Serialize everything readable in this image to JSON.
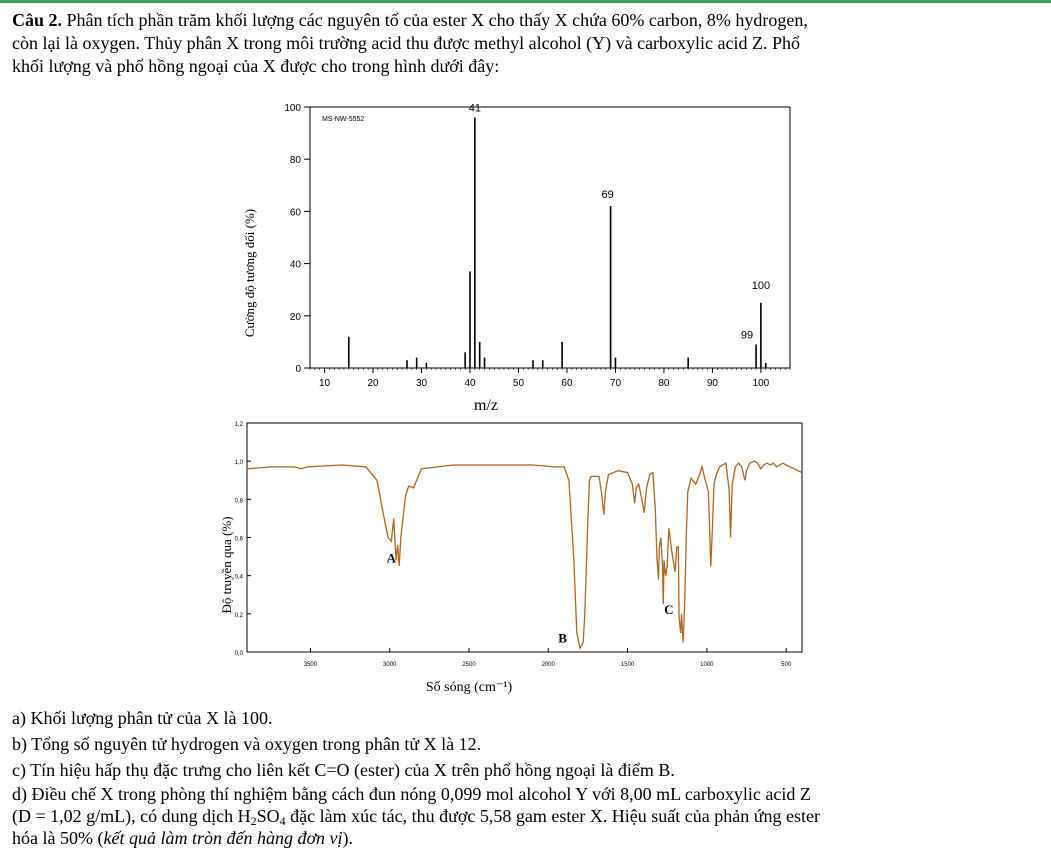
{
  "question": {
    "label": "Câu 2.",
    "line1": "Phân tích phần trăm khối lượng các nguyên tố của ester X cho thấy X chứa 60% carbon, 8% hydrogen,",
    "line2": "còn lại là oxygen. Thủy phân X trong môi trường acid thu được methyl alcohol (Y) và carboxylic acid Z. Phổ",
    "line3": "khối lượng và phổ hồng ngoại của X được cho trong hình dưới đây:"
  },
  "chart_data": [
    {
      "type": "bar",
      "title": "MS-NW-5552",
      "xlabel": "m/z",
      "ylabel": "Cường độ tương đối (%)",
      "xlim": [
        7,
        106
      ],
      "ylim": [
        0,
        100
      ],
      "x_ticks": [
        10,
        20,
        30,
        40,
        50,
        60,
        70,
        80,
        90,
        100
      ],
      "y_ticks": [
        0,
        20,
        40,
        60,
        80,
        100
      ],
      "peaks": [
        {
          "mz": 15,
          "intensity": 12
        },
        {
          "mz": 27,
          "intensity": 3
        },
        {
          "mz": 29,
          "intensity": 4
        },
        {
          "mz": 31,
          "intensity": 2
        },
        {
          "mz": 39,
          "intensity": 6
        },
        {
          "mz": 40,
          "intensity": 37
        },
        {
          "mz": 41,
          "intensity": 96
        },
        {
          "mz": 42,
          "intensity": 10
        },
        {
          "mz": 43,
          "intensity": 4
        },
        {
          "mz": 53,
          "intensity": 3
        },
        {
          "mz": 55,
          "intensity": 3
        },
        {
          "mz": 59,
          "intensity": 10
        },
        {
          "mz": 69,
          "intensity": 62
        },
        {
          "mz": 70,
          "intensity": 4
        },
        {
          "mz": 85,
          "intensity": 4
        },
        {
          "mz": 99,
          "intensity": 9
        },
        {
          "mz": 100,
          "intensity": 25
        },
        {
          "mz": 101,
          "intensity": 2
        }
      ],
      "labels": [
        {
          "mz": 41,
          "text": "41"
        },
        {
          "mz": 69,
          "text": "69"
        },
        {
          "mz": 100,
          "text": "100"
        },
        {
          "mz": 99,
          "text": "99"
        }
      ],
      "grid": false
    },
    {
      "type": "line",
      "xlabel": "Số sóng (cm⁻¹)",
      "ylabel": "Độ truyền qua (%)",
      "xlim": [
        3900,
        400
      ],
      "ylim": [
        0,
        1.2
      ],
      "x_ticks": [
        "3500",
        "3000",
        "2500",
        "2000",
        "1500",
        "1000",
        "500"
      ],
      "y_ticks": [
        "0,0",
        "0,2",
        "0,4",
        "0,6",
        "0,8",
        "1,0",
        "1,2"
      ],
      "line_color": "#b5651d",
      "points": [
        [
          3900,
          0.96
        ],
        [
          3750,
          0.97
        ],
        [
          3600,
          0.97
        ],
        [
          3560,
          0.96
        ],
        [
          3520,
          0.97
        ],
        [
          3300,
          0.98
        ],
        [
          3150,
          0.97
        ],
        [
          3080,
          0.9
        ],
        [
          3040,
          0.72
        ],
        [
          3010,
          0.6
        ],
        [
          2990,
          0.58
        ],
        [
          2975,
          0.7
        ],
        [
          2960,
          0.48
        ],
        [
          2950,
          0.56
        ],
        [
          2940,
          0.45
        ],
        [
          2930,
          0.6
        ],
        [
          2900,
          0.82
        ],
        [
          2880,
          0.87
        ],
        [
          2850,
          0.86
        ],
        [
          2820,
          0.92
        ],
        [
          2800,
          0.96
        ],
        [
          2600,
          0.98
        ],
        [
          2300,
          0.98
        ],
        [
          2100,
          0.98
        ],
        [
          1960,
          0.97
        ],
        [
          1900,
          0.97
        ],
        [
          1870,
          0.9
        ],
        [
          1840,
          0.5
        ],
        [
          1820,
          0.1
        ],
        [
          1800,
          0.02
        ],
        [
          1780,
          0.05
        ],
        [
          1770,
          0.2
        ],
        [
          1750,
          0.7
        ],
        [
          1740,
          0.9
        ],
        [
          1730,
          0.92
        ],
        [
          1700,
          0.92
        ],
        [
          1680,
          0.92
        ],
        [
          1665,
          0.84
        ],
        [
          1650,
          0.72
        ],
        [
          1640,
          0.84
        ],
        [
          1620,
          0.93
        ],
        [
          1560,
          0.95
        ],
        [
          1500,
          0.94
        ],
        [
          1470,
          0.88
        ],
        [
          1455,
          0.78
        ],
        [
          1445,
          0.86
        ],
        [
          1430,
          0.88
        ],
        [
          1410,
          0.8
        ],
        [
          1395,
          0.73
        ],
        [
          1380,
          0.86
        ],
        [
          1360,
          0.93
        ],
        [
          1340,
          0.94
        ],
        [
          1325,
          0.75
        ],
        [
          1315,
          0.5
        ],
        [
          1305,
          0.38
        ],
        [
          1300,
          0.55
        ],
        [
          1290,
          0.6
        ],
        [
          1280,
          0.45
        ],
        [
          1275,
          0.25
        ],
        [
          1270,
          0.48
        ],
        [
          1260,
          0.4
        ],
        [
          1250,
          0.45
        ],
        [
          1240,
          0.65
        ],
        [
          1220,
          0.52
        ],
        [
          1200,
          0.42
        ],
        [
          1190,
          0.55
        ],
        [
          1180,
          0.55
        ],
        [
          1175,
          0.18
        ],
        [
          1165,
          0.1
        ],
        [
          1160,
          0.2
        ],
        [
          1150,
          0.05
        ],
        [
          1140,
          0.25
        ],
        [
          1130,
          0.6
        ],
        [
          1120,
          0.84
        ],
        [
          1100,
          0.91
        ],
        [
          1070,
          0.88
        ],
        [
          1050,
          0.92
        ],
        [
          1030,
          0.97
        ],
        [
          1010,
          0.9
        ],
        [
          990,
          0.84
        ],
        [
          975,
          0.45
        ],
        [
          965,
          0.65
        ],
        [
          955,
          0.88
        ],
        [
          940,
          0.93
        ],
        [
          920,
          0.97
        ],
        [
          880,
          0.99
        ],
        [
          860,
          0.85
        ],
        [
          850,
          0.6
        ],
        [
          840,
          0.88
        ],
        [
          820,
          0.97
        ],
        [
          800,
          0.99
        ],
        [
          780,
          0.97
        ],
        [
          760,
          0.9
        ],
        [
          750,
          0.95
        ],
        [
          730,
          0.99
        ],
        [
          700,
          1.0
        ],
        [
          680,
          0.99
        ],
        [
          660,
          0.96
        ],
        [
          640,
          0.98
        ],
        [
          620,
          0.99
        ],
        [
          600,
          0.98
        ],
        [
          580,
          0.99
        ],
        [
          560,
          0.97
        ],
        [
          540,
          0.98
        ],
        [
          520,
          0.99
        ],
        [
          500,
          0.98
        ],
        [
          450,
          0.96
        ],
        [
          400,
          0.94
        ]
      ],
      "annotations": [
        {
          "text": "A",
          "x": 2990,
          "y": 0.47
        },
        {
          "text": "B",
          "x": 1910,
          "y": 0.05
        },
        {
          "text": "C",
          "x": 1240,
          "y": 0.2
        }
      ]
    }
  ],
  "options": {
    "a": "a) Khối lượng phân tử của X là 100.",
    "b": "b) Tổng số nguyên tử hydrogen và oxygen trong phân tử X là 12.",
    "c": "c) Tín hiệu hấp thụ đặc trưng cho liên kết C=O (ester) của X trên phổ hồng ngoại là điểm B.",
    "d1_pre": "d) Điều chế X trong phòng thí nghiệm bằng cách đun nóng 0,099 mol alcohol Y với 8,00 mL carboxylic acid Z",
    "d2_a": "(D = 1,02 g/mL), có dung dịch H",
    "d2_sub1": "2",
    "d2_b": "SO",
    "d2_sub2": "4",
    "d2_c": " đặc làm xúc tác, thu được 5,58 gam ester X. Hiệu suất của phản ứng ester",
    "d3_a": "hóa là 50% (",
    "d3_italic": "kết quả làm tròn đến hàng đơn vị",
    "d3_b": ")."
  }
}
